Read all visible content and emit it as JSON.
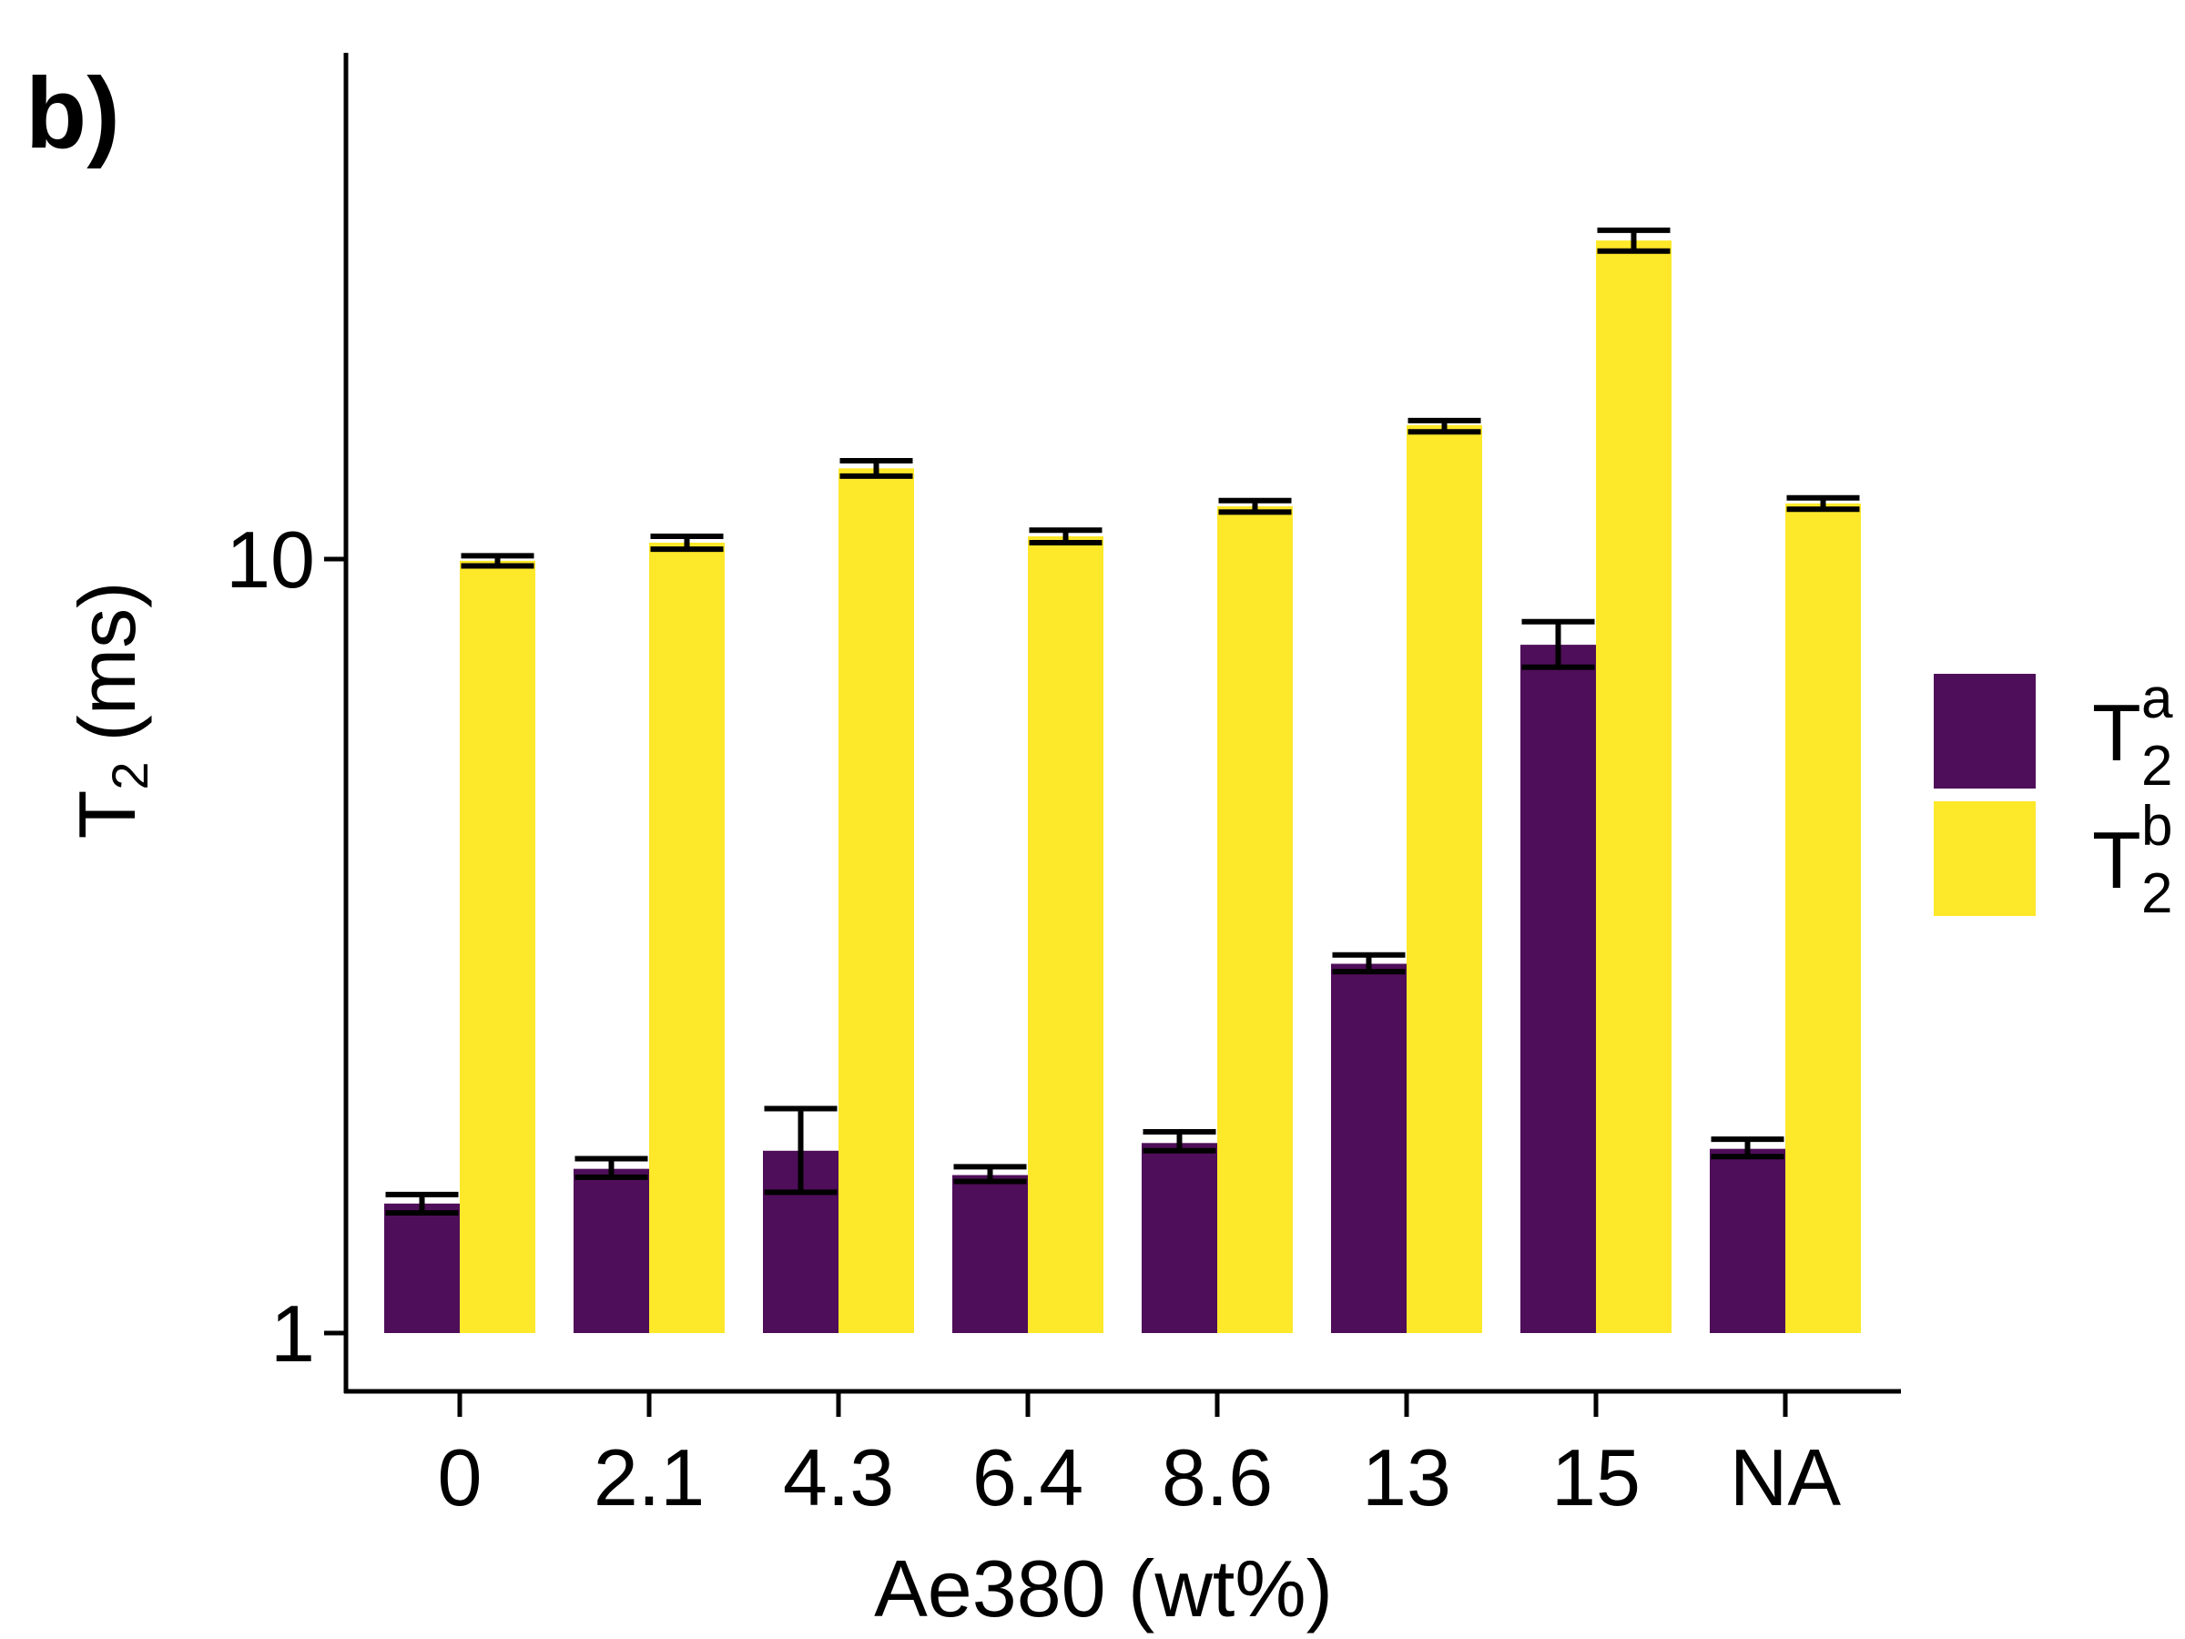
{
  "panel_label": "b)",
  "chart_data": {
    "type": "bar",
    "xlabel": "Ae380 (wt%)",
    "ylabel": {
      "main": "T",
      "sub": "2",
      "unit": "(ms)"
    },
    "yscale": "log",
    "ylim": [
      0.93,
      30
    ],
    "yticks": [
      {
        "value": 1,
        "label": "1"
      },
      {
        "value": 10,
        "label": "10"
      }
    ],
    "categories": [
      "0",
      "2.1",
      "4.3",
      "6.4",
      "8.6",
      "13",
      "15",
      "NA"
    ],
    "series": [
      {
        "name_main": "T",
        "name_sub": "2",
        "name_sup": "a",
        "color": "#4f0e59",
        "values": [
          1.47,
          1.63,
          1.72,
          1.6,
          1.76,
          3.0,
          7.75,
          1.73
        ],
        "errors": [
          [
            1.43,
            1.51
          ],
          [
            1.59,
            1.68
          ],
          [
            1.52,
            1.95
          ],
          [
            1.57,
            1.64
          ],
          [
            1.72,
            1.82
          ],
          [
            2.93,
            3.08
          ],
          [
            7.25,
            8.3
          ],
          [
            1.69,
            1.78
          ]
        ]
      },
      {
        "name_main": "T",
        "name_sub": "2",
        "name_sup": "b",
        "color": "#fde82a",
        "values": [
          9.95,
          10.5,
          13.1,
          10.7,
          11.7,
          14.9,
          25.8,
          11.8
        ],
        "errors": [
          [
            9.8,
            10.1
          ],
          [
            10.3,
            10.7
          ],
          [
            12.8,
            13.4
          ],
          [
            10.5,
            10.9
          ],
          [
            11.5,
            11.9
          ],
          [
            14.6,
            15.1
          ],
          [
            25.0,
            26.6
          ],
          [
            11.6,
            12.0
          ]
        ]
      }
    ],
    "legend": "right",
    "grid": false
  }
}
